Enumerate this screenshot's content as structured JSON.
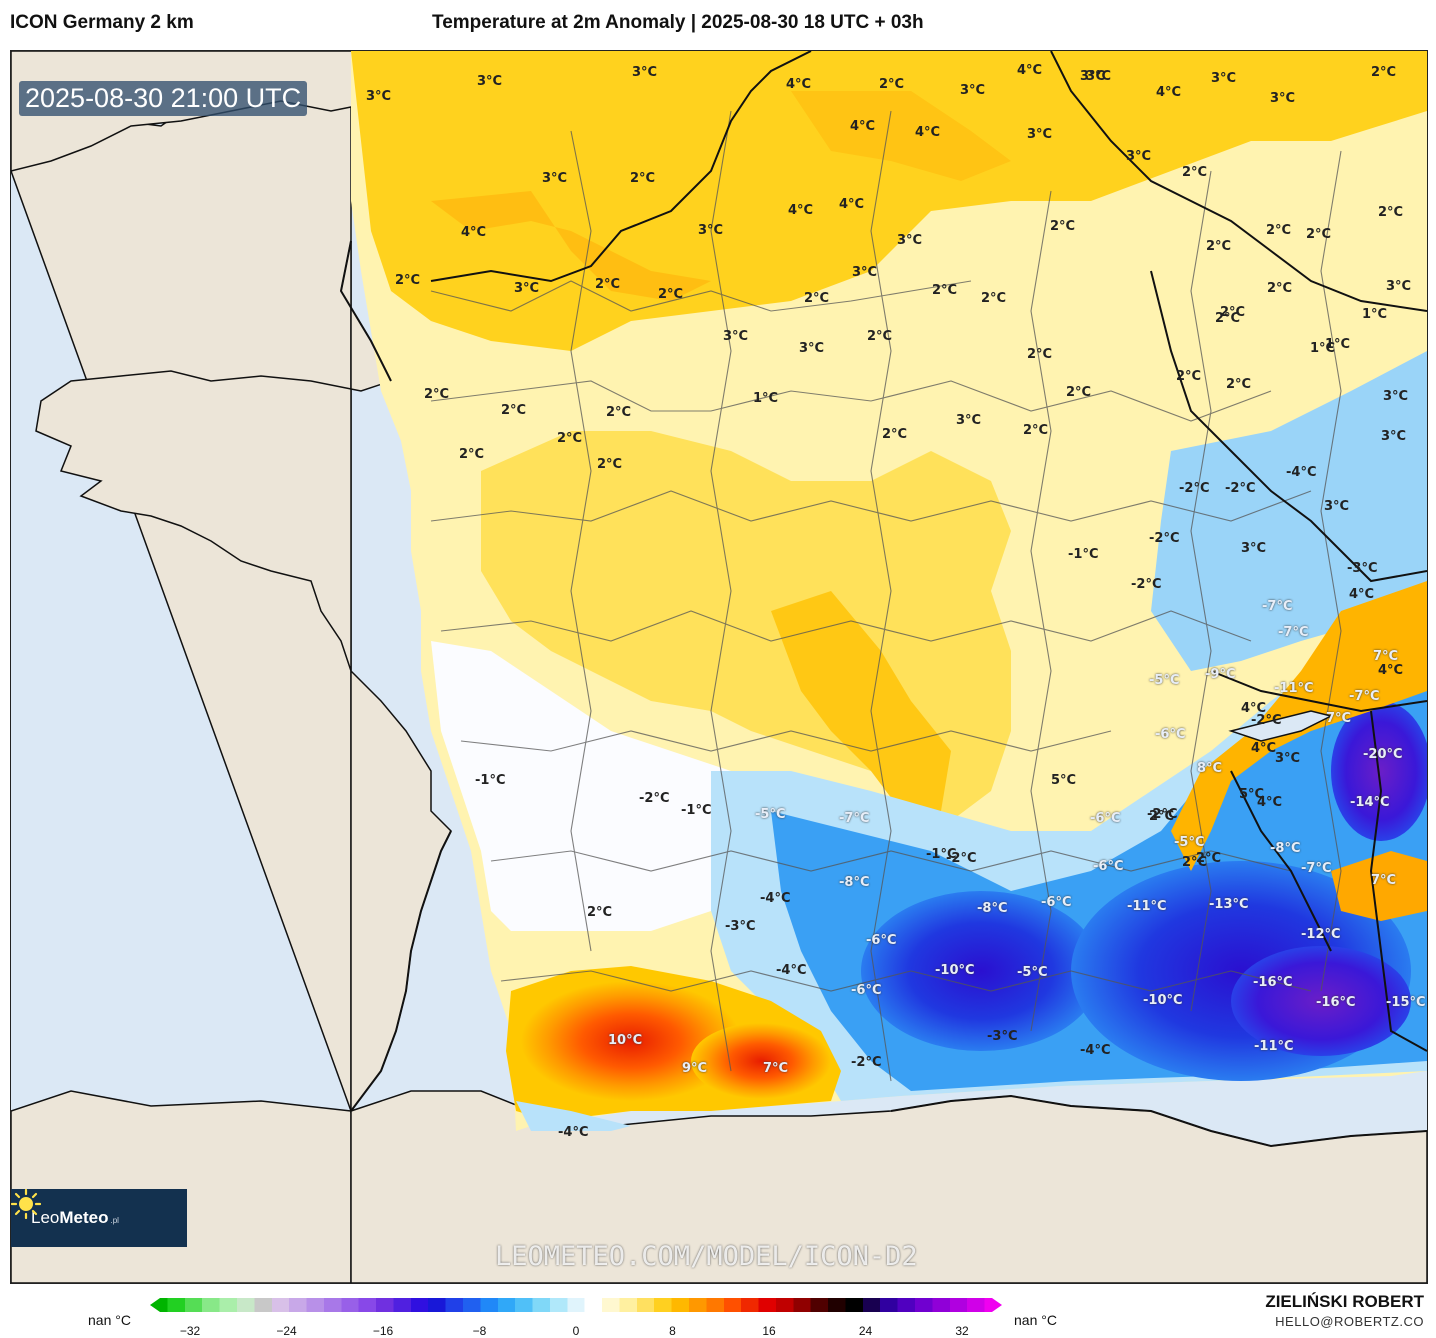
{
  "header": {
    "model_name": "ICON Germany 2 km",
    "title": "Temperature at 2m Anomaly | 2025-08-30 18 UTC + 03h"
  },
  "map": {
    "timestamp": "2025-08-30 21:00 UTC",
    "watermark": "LEOMETEO.COM/MODEL/ICON-D2",
    "logo": {
      "brand_a": "Leo",
      "brand_b": "Meteo",
      "suffix": ".pl"
    },
    "labels": [
      {
        "t": "3°C"
      },
      {
        "t": "3°C"
      },
      {
        "t": "3°C"
      },
      {
        "t": "2°C"
      },
      {
        "t": "4°C"
      },
      {
        "t": "2°C"
      },
      {
        "t": "4°C"
      },
      {
        "t": "4°C"
      },
      {
        "t": "4°C"
      },
      {
        "t": "4°C"
      },
      {
        "t": "4°C"
      },
      {
        "t": "3°C"
      },
      {
        "t": "3°C"
      },
      {
        "t": "3°C"
      },
      {
        "t": "4°C"
      },
      {
        "t": "3°C"
      },
      {
        "t": "4°C"
      },
      {
        "t": "3°C"
      },
      {
        "t": "3°C"
      },
      {
        "t": "2°C"
      },
      {
        "t": "3°C"
      },
      {
        "t": "3°C"
      },
      {
        "t": "2°C"
      },
      {
        "t": "2°C"
      },
      {
        "t": "3°C"
      },
      {
        "t": "3°C"
      },
      {
        "t": "2°C"
      },
      {
        "t": "3°C"
      },
      {
        "t": "2°C"
      },
      {
        "t": "2°C"
      },
      {
        "t": "3°C"
      },
      {
        "t": "2°C"
      },
      {
        "t": "2°C"
      },
      {
        "t": "2°C"
      },
      {
        "t": "2°C"
      },
      {
        "t": "3°C"
      },
      {
        "t": "2°C"
      },
      {
        "t": "2°C"
      },
      {
        "t": "1°C"
      },
      {
        "t": "1°C"
      },
      {
        "t": "2°C"
      },
      {
        "t": "2°C"
      },
      {
        "t": "2°C"
      },
      {
        "t": "2°C"
      },
      {
        "t": "1°C"
      },
      {
        "t": "2°C"
      },
      {
        "t": "3°C"
      },
      {
        "t": "2°C"
      },
      {
        "t": "2°C"
      },
      {
        "t": "3°C"
      },
      {
        "t": "2°C"
      },
      {
        "t": "2°C"
      },
      {
        "t": "1°C"
      },
      {
        "t": "2°C"
      },
      {
        "t": "2°C"
      },
      {
        "t": "2°C"
      },
      {
        "t": "2°C"
      },
      {
        "t": "2°C"
      },
      {
        "t": "3°C"
      },
      {
        "t": "3°C"
      },
      {
        "t": "2°C"
      },
      {
        "t": "3°C"
      },
      {
        "t": "2°C"
      },
      {
        "t": "2°C"
      },
      {
        "t": "-4°C"
      },
      {
        "t": "-2°C"
      },
      {
        "t": "-2°C"
      },
      {
        "t": "3°C"
      },
      {
        "t": "-1°C"
      },
      {
        "t": "-2°C"
      },
      {
        "t": "-2°C"
      },
      {
        "t": "3°C"
      },
      {
        "t": "-3°C"
      },
      {
        "t": "-7°C"
      },
      {
        "t": "4°C"
      },
      {
        "t": "-7°C"
      },
      {
        "t": "7°C"
      },
      {
        "t": "4°C"
      },
      {
        "t": "-9°C"
      },
      {
        "t": "-5°C"
      },
      {
        "t": "-11°C"
      },
      {
        "t": "-7°C"
      },
      {
        "t": "4°C"
      },
      {
        "t": "-2°C"
      },
      {
        "t": "7°C"
      },
      {
        "t": "-6°C"
      },
      {
        "t": "4°C"
      },
      {
        "t": "-20°C"
      },
      {
        "t": "3°C"
      },
      {
        "t": "5°C"
      },
      {
        "t": "8°C"
      },
      {
        "t": "5°C"
      },
      {
        "t": "-2°C"
      },
      {
        "t": "4°C"
      },
      {
        "t": "-14°C"
      },
      {
        "t": "-1°C"
      },
      {
        "t": "-2°C"
      },
      {
        "t": "-1°C"
      },
      {
        "t": "-5°C"
      },
      {
        "t": "-7°C"
      },
      {
        "t": "-6°C"
      },
      {
        "t": "2°C"
      },
      {
        "t": "-5°C"
      },
      {
        "t": "2°C"
      },
      {
        "t": "-8°C"
      },
      {
        "t": "-1°C"
      },
      {
        "t": "-2°C"
      },
      {
        "t": "-6°C"
      },
      {
        "t": "2°C"
      },
      {
        "t": "-7°C"
      },
      {
        "t": "-8°C"
      },
      {
        "t": "7°C"
      },
      {
        "t": "-4°C"
      },
      {
        "t": "-8°C"
      },
      {
        "t": "-6°C"
      },
      {
        "t": "-11°C"
      },
      {
        "t": "-13°C"
      },
      {
        "t": "2°C"
      },
      {
        "t": "-3°C"
      },
      {
        "t": "-6°C"
      },
      {
        "t": "-12°C"
      },
      {
        "t": "-4°C"
      },
      {
        "t": "-10°C"
      },
      {
        "t": "-5°C"
      },
      {
        "t": "-16°C"
      },
      {
        "t": "-6°C"
      },
      {
        "t": "-10°C"
      },
      {
        "t": "-16°C"
      },
      {
        "t": "-15°C"
      },
      {
        "t": "10°C"
      },
      {
        "t": "-3°C"
      },
      {
        "t": "9°C"
      },
      {
        "t": "7°C"
      },
      {
        "t": "-2°C"
      },
      {
        "t": "-4°C"
      },
      {
        "t": "-11°C"
      },
      {
        "t": "-4°C"
      }
    ]
  },
  "legend": {
    "nan_left": "nan °C",
    "nan_right": "nan °C",
    "ticks": [
      "−32",
      "−24",
      "−16",
      "−8",
      "0",
      "8",
      "16",
      "24",
      "32"
    ],
    "colors": [
      "#00b400",
      "#22d022",
      "#55dd55",
      "#88e888",
      "#aaeeaa",
      "#c8e8c8",
      "#c8c8c8",
      "#d8c0e8",
      "#c8a8e8",
      "#b890e8",
      "#a878e8",
      "#9860e8",
      "#8848e8",
      "#7030e0",
      "#5020e0",
      "#3010e0",
      "#1818d8",
      "#2040e8",
      "#2060f0",
      "#2088f8",
      "#30a8f8",
      "#50c0f8",
      "#80d8f8",
      "#b0e8fa",
      "#e0f4fc",
      "#ffffff",
      "#fff8d0",
      "#fff0a0",
      "#ffe060",
      "#ffd020",
      "#ffb800",
      "#ff9800",
      "#ff7800",
      "#ff5000",
      "#f02800",
      "#e00000",
      "#c00000",
      "#900000",
      "#500000",
      "#200000",
      "#000000",
      "#180050",
      "#3000a0",
      "#5000c0",
      "#7000d0",
      "#9000d8",
      "#b000e0",
      "#d000e8",
      "#f000f0"
    ]
  },
  "author": {
    "name": "ZIELIŃSKI ROBERT",
    "email": "HELLO@ROBERTZ.CO"
  }
}
